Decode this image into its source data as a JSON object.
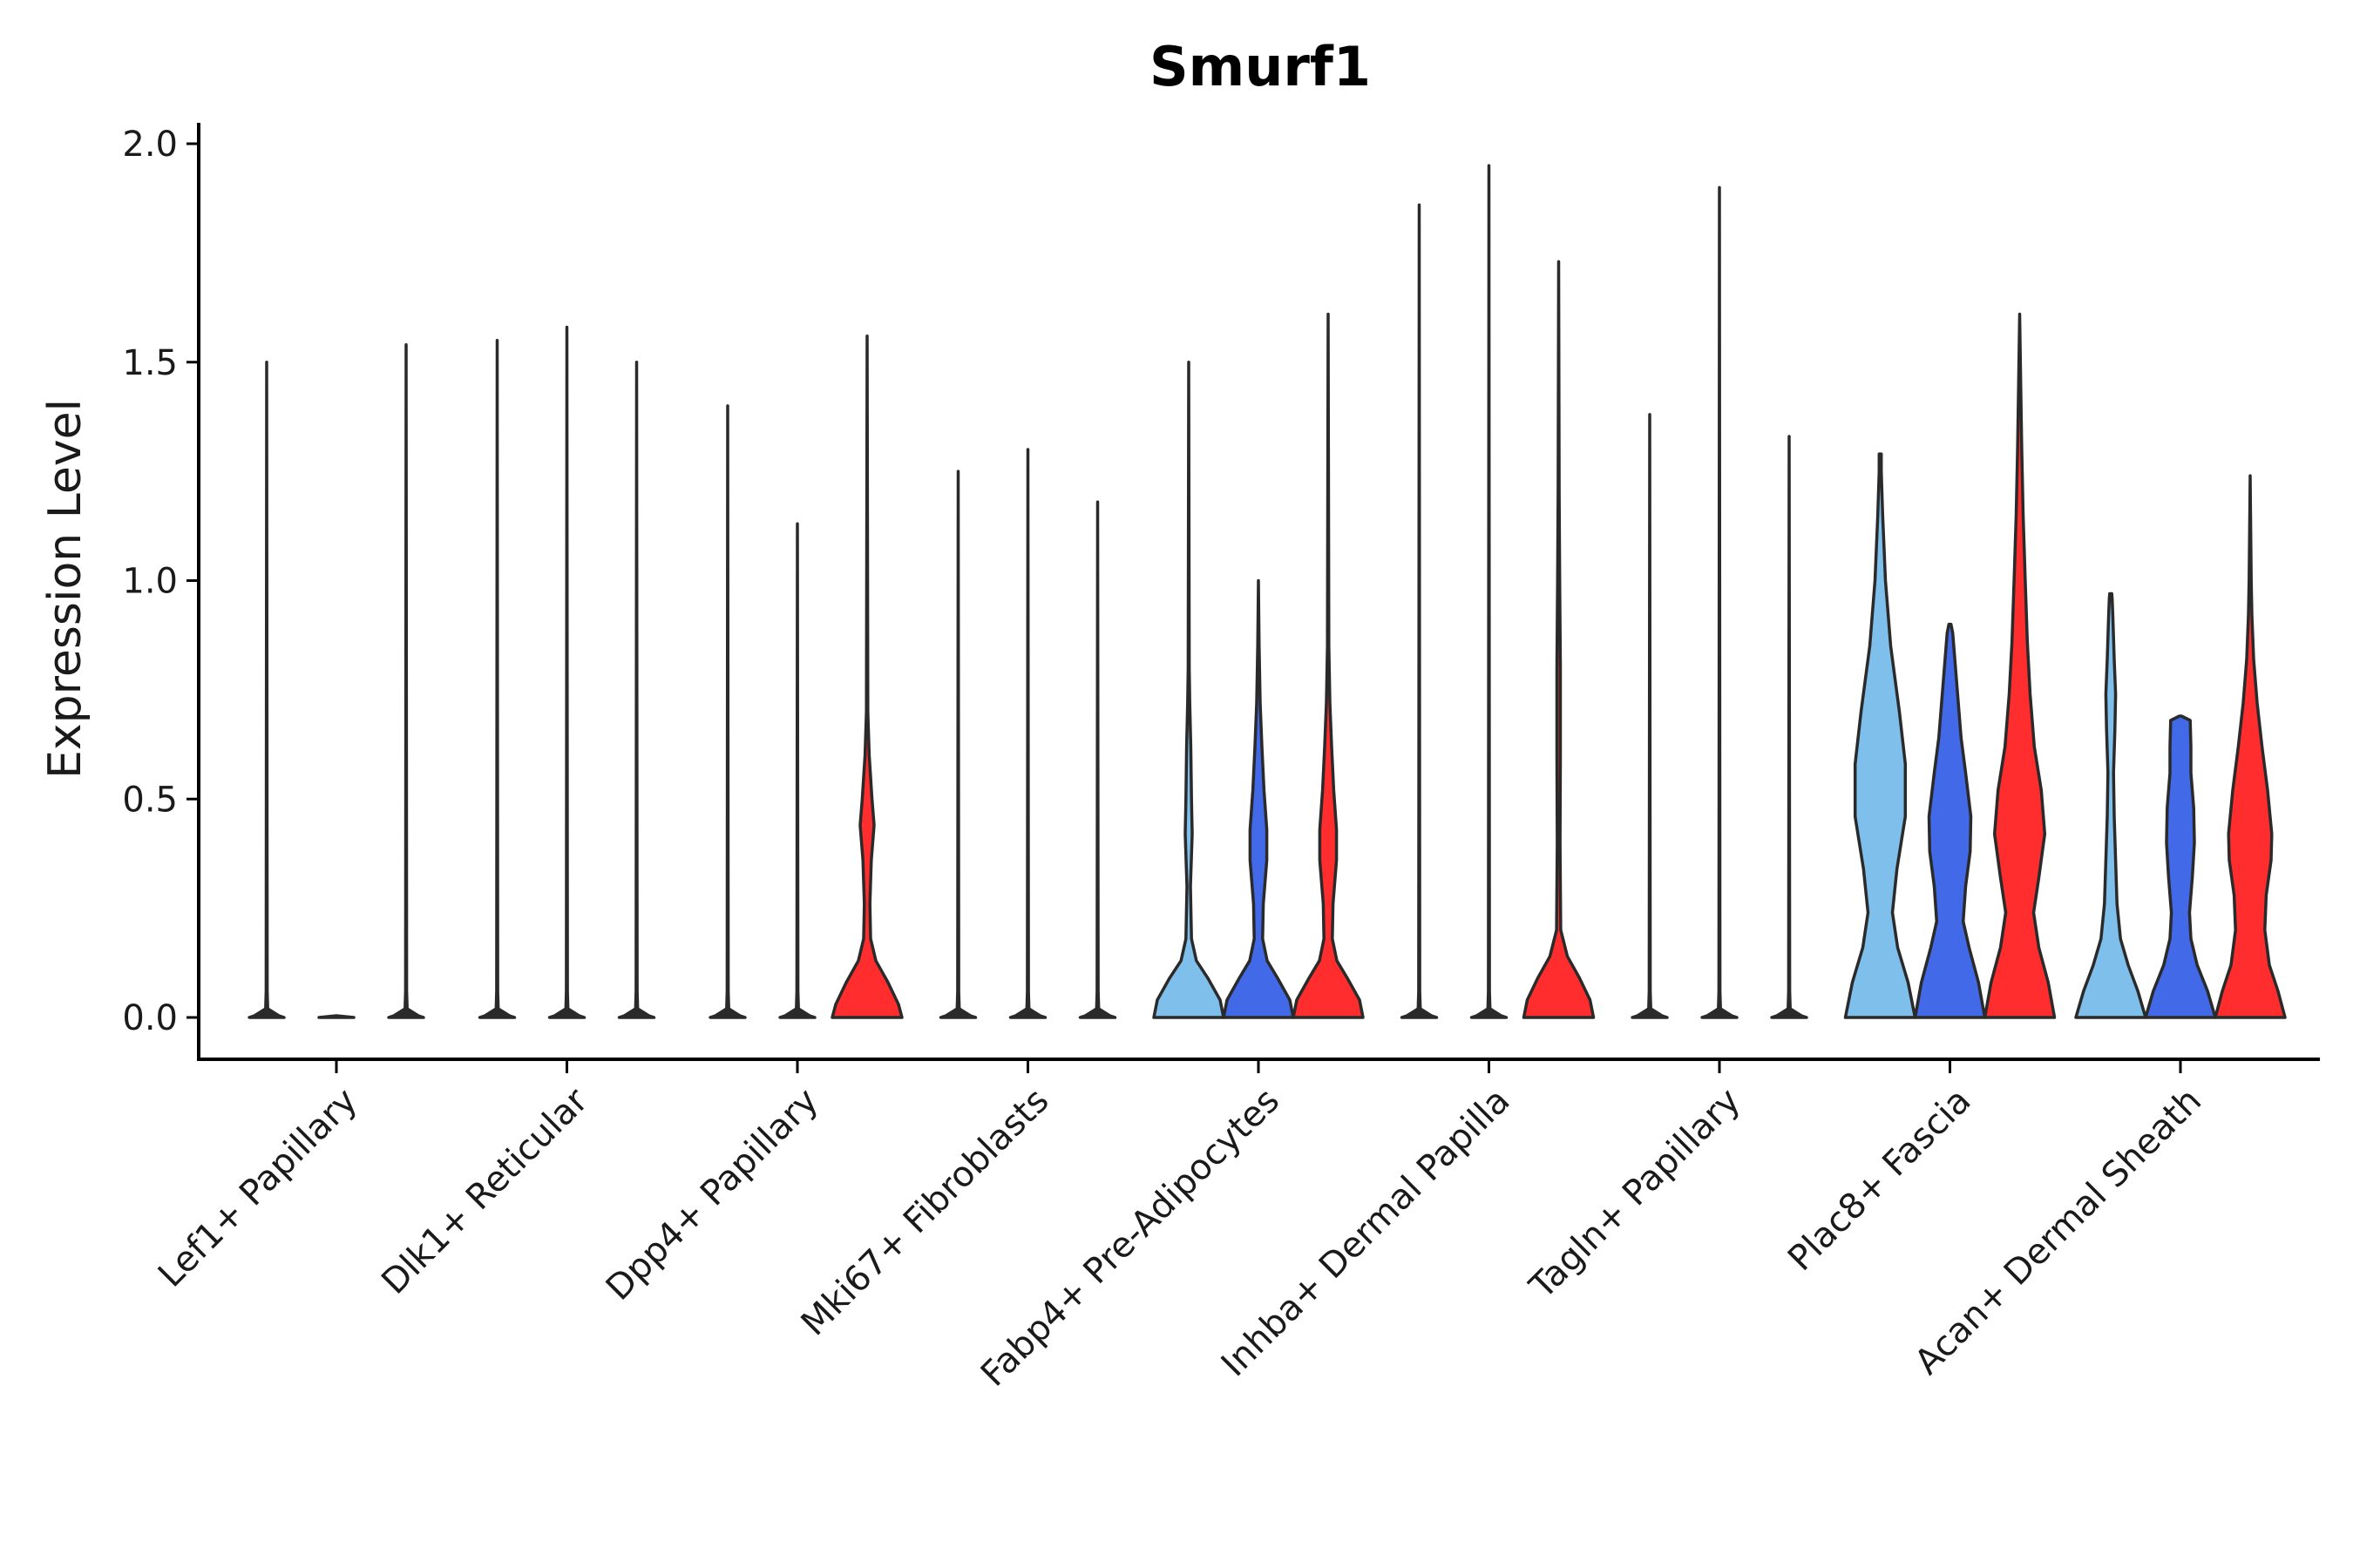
{
  "chart_data": {
    "type": "violin",
    "title": "Smurf1",
    "xlabel": "",
    "ylabel": "Expression Level",
    "ylim": [
      -0.1,
      2.05
    ],
    "yticks": [
      "0.0",
      "0.5",
      "1.0",
      "1.5",
      "2.0"
    ],
    "ytick_values": [
      0.0,
      0.5,
      1.0,
      1.5,
      2.0
    ],
    "legend": "none",
    "grid": false,
    "colors": {
      "group_a": "#7fbfec",
      "group_b": "#4169e8",
      "group_c": "#ff2d2d",
      "outline": "#2a2a2a"
    },
    "categories": [
      "Lef1+ Papillary",
      "Dlk1+ Reticular",
      "Dpp4+ Papillary",
      "Mki67+ Fibroblasts",
      "Fabp4+ Pre-Adipocytes",
      "Inhba+ Dermal Papilla",
      "Tagln+ Papillary",
      "Plac8+ Fascia",
      "Acan+ Dermal Sheath"
    ],
    "violins": [
      {
        "category": "Lef1+ Papillary",
        "series": "group_a",
        "max": 1.5,
        "profile": "flat"
      },
      {
        "category": "Lef1+ Papillary",
        "series": "group_b",
        "max": null,
        "profile": "flat"
      },
      {
        "category": "Lef1+ Papillary",
        "series": "group_c",
        "max": 1.54,
        "profile": "flat"
      },
      {
        "category": "Dlk1+ Reticular",
        "series": "group_a",
        "max": 1.55,
        "profile": "flat"
      },
      {
        "category": "Dlk1+ Reticular",
        "series": "group_b",
        "max": 1.58,
        "profile": "flat"
      },
      {
        "category": "Dlk1+ Reticular",
        "series": "group_c",
        "max": 1.5,
        "profile": "flat"
      },
      {
        "category": "Dpp4+ Papillary",
        "series": "group_a",
        "max": 1.4,
        "profile": "flat"
      },
      {
        "category": "Dpp4+ Papillary",
        "series": "group_b",
        "max": 1.13,
        "profile": "flat"
      },
      {
        "category": "Dpp4+ Papillary",
        "series": "group_c",
        "max": 1.56,
        "profile": "base_bump_upper"
      },
      {
        "category": "Mki67+ Fibroblasts",
        "series": "group_a",
        "max": 1.25,
        "profile": "flat"
      },
      {
        "category": "Mki67+ Fibroblasts",
        "series": "group_b",
        "max": 1.3,
        "profile": "flat"
      },
      {
        "category": "Mki67+ Fibroblasts",
        "series": "group_c",
        "max": 1.18,
        "profile": "flat"
      },
      {
        "category": "Fabp4+ Pre-Adipocytes",
        "series": "group_a",
        "max": 1.5,
        "profile": "base_bump_small"
      },
      {
        "category": "Fabp4+ Pre-Adipocytes",
        "series": "group_b",
        "max": 1.0,
        "profile": "base_bump_mid"
      },
      {
        "category": "Fabp4+ Pre-Adipocytes",
        "series": "group_c",
        "max": 1.61,
        "profile": "base_bump_mid"
      },
      {
        "category": "Inhba+ Dermal Papilla",
        "series": "group_a",
        "max": 1.86,
        "profile": "flat"
      },
      {
        "category": "Inhba+ Dermal Papilla",
        "series": "group_b",
        "max": 1.95,
        "profile": "flat"
      },
      {
        "category": "Inhba+ Dermal Papilla",
        "series": "group_c",
        "max": 1.73,
        "profile": "base_thin_upper"
      },
      {
        "category": "Tagln+ Papillary",
        "series": "group_a",
        "max": 1.38,
        "profile": "flat"
      },
      {
        "category": "Tagln+ Papillary",
        "series": "group_b",
        "max": 1.9,
        "profile": "flat"
      },
      {
        "category": "Tagln+ Papillary",
        "series": "group_c",
        "max": 1.33,
        "profile": "flat"
      },
      {
        "category": "Plac8+ Fascia",
        "series": "group_a",
        "max": 1.29,
        "profile": "wide_bimodal"
      },
      {
        "category": "Plac8+ Fascia",
        "series": "group_b",
        "max": 0.9,
        "profile": "wide_bimodal_b"
      },
      {
        "category": "Plac8+ Fascia",
        "series": "group_c",
        "max": 1.61,
        "profile": "wide_bimodal_c"
      },
      {
        "category": "Acan+ Dermal Sheath",
        "series": "group_a",
        "max": 0.97,
        "profile": "base_thin_stem"
      },
      {
        "category": "Acan+ Dermal Sheath",
        "series": "group_b",
        "max": 0.69,
        "profile": "base_mid_stem"
      },
      {
        "category": "Acan+ Dermal Sheath",
        "series": "group_c",
        "max": 1.24,
        "profile": "base_bimodal"
      }
    ]
  }
}
